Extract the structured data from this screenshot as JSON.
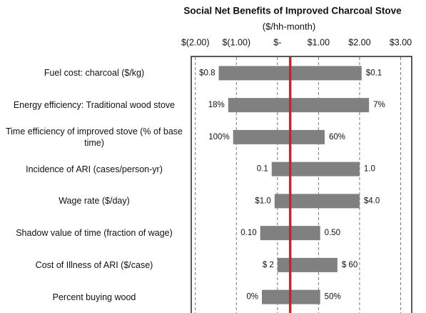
{
  "chart_data": {
    "type": "tornado",
    "title": "Social Net Benefits of Improved Charcoal Stove",
    "subtitle": "($/hh-month)",
    "categories": [
      "Fuel cost: charcoal ($/kg)",
      "Energy efficiency: Traditional wood stove",
      "Time efficiency of improved stove (% of base time)",
      "Incidence of ARI (cases/person-yr)",
      "Wage rate ($/day)",
      "Shadow value of time (fraction of wage)",
      "Cost of Illness of ARI ($/case)",
      "Percent buying wood"
    ],
    "low": [
      -1.43,
      -1.2,
      -1.08,
      -0.14,
      -0.07,
      -0.42,
      0,
      -0.38
    ],
    "high": [
      2.05,
      2.23,
      1.15,
      2.0,
      2.0,
      1.04,
      1.46,
      1.04
    ],
    "low_labels": [
      "$0.8",
      "18%",
      "100%",
      "0.1",
      "$1.0",
      "0.10",
      "$ 2",
      "0%"
    ],
    "high_labels": [
      "$0.1",
      "7%",
      "60%",
      "1.0",
      "$4.0",
      "0.50",
      "$ 60",
      "50%"
    ],
    "base": 0.31,
    "color": "#808080",
    "base_color": "#c0282d",
    "xlim": [
      -2.1,
      3.27
    ],
    "xticks": [
      {
        "value": -2,
        "label": "$(2.00)"
      },
      {
        "value": -1,
        "label": "$(1.00)"
      },
      {
        "value": 0,
        "label": "$-"
      },
      {
        "value": 1,
        "label": "$1.00"
      },
      {
        "value": 2,
        "label": "$2.00"
      },
      {
        "value": 3,
        "label": "$3.00"
      }
    ],
    "grid": true
  }
}
